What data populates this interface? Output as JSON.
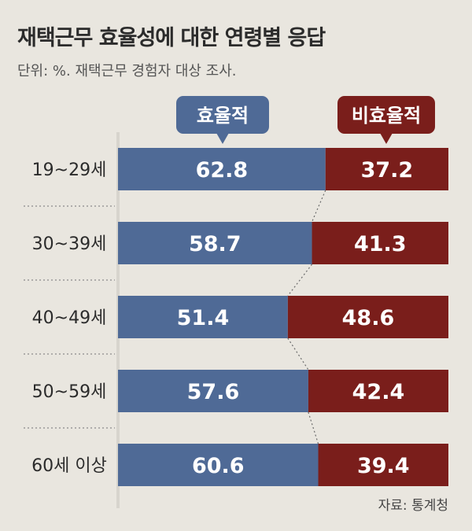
{
  "title": "재택근무 효율성에 대한 연령별 응답",
  "subtitle": "단위: %. 재택근무 경험자 대상 조사.",
  "source": "자료: 통계청",
  "colors": {
    "efficient": "#4f6a96",
    "inefficient": "#7a1e1b",
    "background": "#e9e6df",
    "axis": "#d7d4cd"
  },
  "chart_data": {
    "type": "bar",
    "stacked": true,
    "orientation": "horizontal",
    "percent": true,
    "categories": [
      "19~29세",
      "30~39세",
      "40~49세",
      "50~59세",
      "60세 이상"
    ],
    "series": [
      {
        "name": "효율적",
        "values": [
          62.8,
          58.7,
          51.4,
          57.6,
          60.6
        ]
      },
      {
        "name": "비효율적",
        "values": [
          37.2,
          41.3,
          48.6,
          42.4,
          39.4
        ]
      }
    ],
    "xlim": [
      0,
      100
    ]
  }
}
